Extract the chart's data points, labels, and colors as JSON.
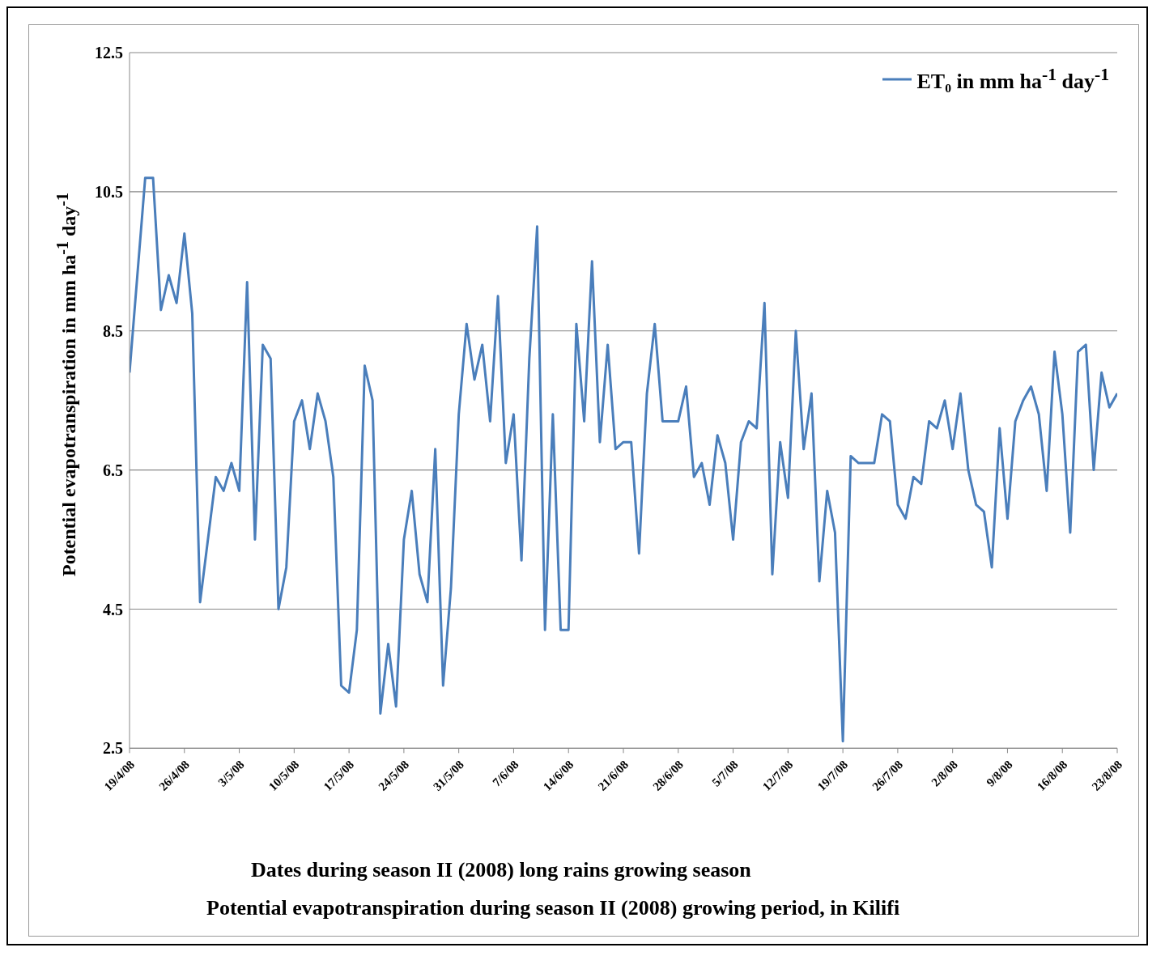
{
  "chart_data": {
    "type": "line",
    "xlabel": "Dates during season II (2008) long rains growing season",
    "ylabel": "Potential evapotranspiration in mm ha$^{-1}$ day$^{-1}$",
    "annotations": [
      "Potential evapotranspiration during season II (2008) growing period, in Kilifi"
    ],
    "x": [
      "2008-04-19",
      "2008-04-20",
      "2008-04-21",
      "2008-04-22",
      "2008-04-23",
      "2008-04-24",
      "2008-04-25",
      "2008-04-26",
      "2008-04-27",
      "2008-04-28",
      "2008-04-29",
      "2008-04-30",
      "2008-05-01",
      "2008-05-02",
      "2008-05-03",
      "2008-05-04",
      "2008-05-05",
      "2008-05-06",
      "2008-05-07",
      "2008-05-08",
      "2008-05-09",
      "2008-05-10",
      "2008-05-11",
      "2008-05-12",
      "2008-05-13",
      "2008-05-14",
      "2008-05-15",
      "2008-05-16",
      "2008-05-17",
      "2008-05-18",
      "2008-05-19",
      "2008-05-20",
      "2008-05-21",
      "2008-05-22",
      "2008-05-23",
      "2008-05-24",
      "2008-05-25",
      "2008-05-26",
      "2008-05-27",
      "2008-05-28",
      "2008-05-29",
      "2008-05-30",
      "2008-05-31",
      "2008-06-01",
      "2008-06-02",
      "2008-06-03",
      "2008-06-04",
      "2008-06-05",
      "2008-06-06",
      "2008-06-07",
      "2008-06-08",
      "2008-06-09",
      "2008-06-10",
      "2008-06-11",
      "2008-06-12",
      "2008-06-13",
      "2008-06-14",
      "2008-06-15",
      "2008-06-16",
      "2008-06-17",
      "2008-06-18",
      "2008-06-19",
      "2008-06-20",
      "2008-06-21",
      "2008-06-22",
      "2008-06-23",
      "2008-06-24",
      "2008-06-25",
      "2008-06-26",
      "2008-06-27",
      "2008-06-28",
      "2008-06-29",
      "2008-06-30",
      "2008-07-01",
      "2008-07-02",
      "2008-07-03",
      "2008-07-04",
      "2008-07-05",
      "2008-07-06",
      "2008-07-07",
      "2008-07-08",
      "2008-07-09",
      "2008-07-10",
      "2008-07-11",
      "2008-07-12",
      "2008-07-13",
      "2008-07-14",
      "2008-07-15",
      "2008-07-16",
      "2008-07-17",
      "2008-07-18",
      "2008-07-19",
      "2008-07-20",
      "2008-07-21",
      "2008-07-22",
      "2008-07-23",
      "2008-07-24",
      "2008-07-25",
      "2008-07-26",
      "2008-07-27",
      "2008-07-28",
      "2008-07-29",
      "2008-07-30",
      "2008-07-31",
      "2008-08-01",
      "2008-08-02",
      "2008-08-03",
      "2008-08-04",
      "2008-08-05",
      "2008-08-06",
      "2008-08-07",
      "2008-08-08",
      "2008-08-09",
      "2008-08-10",
      "2008-08-11",
      "2008-08-12",
      "2008-08-13",
      "2008-08-14",
      "2008-08-15",
      "2008-08-16",
      "2008-08-17",
      "2008-08-18",
      "2008-08-19",
      "2008-08-20",
      "2008-08-21",
      "2008-08-22",
      "2008-08-23"
    ],
    "series": [
      {
        "name": "ET₀ in mm ha$^{-1}$ day$^{-1}$",
        "color": "#4a7ebb",
        "values": [
          7.9,
          9.3,
          10.7,
          10.7,
          8.8,
          9.3,
          8.9,
          9.9,
          8.75,
          4.6,
          5.5,
          6.4,
          6.2,
          6.6,
          6.2,
          9.2,
          5.5,
          8.3,
          8.1,
          4.5,
          5.1,
          7.2,
          7.5,
          6.8,
          7.6,
          7.2,
          6.4,
          3.4,
          3.3,
          4.2,
          8.0,
          7.5,
          3.0,
          4.0,
          3.1,
          5.5,
          6.2,
          5.0,
          4.6,
          6.8,
          3.4,
          4.8,
          7.3,
          8.6,
          7.8,
          8.3,
          7.2,
          9.0,
          6.6,
          7.3,
          5.2,
          8.1,
          10.0,
          4.2,
          7.3,
          4.2,
          4.2,
          8.6,
          7.2,
          9.5,
          6.9,
          8.3,
          6.8,
          6.9,
          6.9,
          5.3,
          7.6,
          8.6,
          7.2,
          7.2,
          7.2,
          7.7,
          6.4,
          6.6,
          6.0,
          7.0,
          6.6,
          5.5,
          6.9,
          7.2,
          7.1,
          8.9,
          5.0,
          6.9,
          6.1,
          8.5,
          6.8,
          7.6,
          4.9,
          6.2,
          5.6,
          2.6,
          6.7,
          6.6,
          6.6,
          6.6,
          7.3,
          7.2,
          6.0,
          5.8,
          6.4,
          6.3,
          7.2,
          7.1,
          7.5,
          6.8,
          7.6,
          6.5,
          6.0,
          5.9,
          5.1,
          7.1,
          5.8,
          7.2,
          7.5,
          7.7,
          7.3,
          6.2,
          8.2,
          7.3,
          5.6,
          8.2,
          8.3,
          6.5,
          7.9,
          7.4,
          7.6
        ]
      }
    ],
    "xlim": [
      "2008-04-19",
      "2008-08-23"
    ],
    "xticks": [
      {
        "value": "2008-04-19",
        "label": "19/4/08"
      },
      {
        "value": "2008-04-26",
        "label": "26/4/08"
      },
      {
        "value": "2008-05-03",
        "label": "3/5/08"
      },
      {
        "value": "2008-05-10",
        "label": "10/5/08"
      },
      {
        "value": "2008-05-17",
        "label": "17/5/08"
      },
      {
        "value": "2008-05-24",
        "label": "24/5/08"
      },
      {
        "value": "2008-05-31",
        "label": "31/5/08"
      },
      {
        "value": "2008-06-07",
        "label": "7/6/08"
      },
      {
        "value": "2008-06-14",
        "label": "14/6/08"
      },
      {
        "value": "2008-06-21",
        "label": "21/6/08"
      },
      {
        "value": "2008-06-28",
        "label": "28/6/08"
      },
      {
        "value": "2008-07-05",
        "label": "5/7/08"
      },
      {
        "value": "2008-07-12",
        "label": "12/7/08"
      },
      {
        "value": "2008-07-19",
        "label": "19/7/08"
      },
      {
        "value": "2008-07-26",
        "label": "26/7/08"
      },
      {
        "value": "2008-08-02",
        "label": "2/8/08"
      },
      {
        "value": "2008-08-09",
        "label": "9/8/08"
      },
      {
        "value": "2008-08-16",
        "label": "16/8/08"
      },
      {
        "value": "2008-08-23",
        "label": "23/8/08"
      }
    ],
    "ylim": [
      2.5,
      12.5
    ],
    "yticks": [
      2.5,
      4.5,
      6.5,
      8.5,
      10.5,
      12.5
    ],
    "grid": "y",
    "legend": "top right",
    "marker": "none",
    "line_style": "solid"
  }
}
